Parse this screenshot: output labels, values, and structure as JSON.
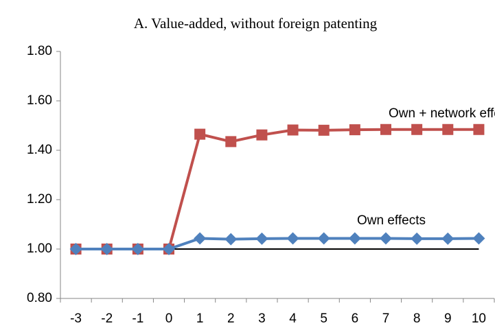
{
  "chart_data": {
    "type": "line",
    "title": "A. Value-added, without foreign patenting",
    "categories": [
      "-3",
      "-2",
      "-1",
      "0",
      "1",
      "2",
      "3",
      "4",
      "5",
      "6",
      "7",
      "8",
      "9",
      "10"
    ],
    "series": [
      {
        "name": "Own + network effects",
        "color": "#c0504d",
        "marker": "square",
        "values": [
          1.0,
          1.0,
          1.0,
          1.0,
          1.465,
          1.435,
          1.462,
          1.482,
          1.481,
          1.483,
          1.484,
          1.484,
          1.484,
          1.484
        ]
      },
      {
        "name": "Own effects",
        "color": "#4f81bd",
        "marker": "diamond",
        "values": [
          1.0,
          1.0,
          1.0,
          1.0,
          1.043,
          1.04,
          1.042,
          1.043,
          1.043,
          1.043,
          1.043,
          1.042,
          1.042,
          1.043
        ]
      }
    ],
    "reference_line": {
      "value": 1.0,
      "color": "#000000"
    },
    "ylim": [
      0.8,
      1.8
    ],
    "yticks": [
      {
        "value": 0.8,
        "label": "0.80"
      },
      {
        "value": 1.0,
        "label": "1.00"
      },
      {
        "value": 1.2,
        "label": "1.20"
      },
      {
        "value": 1.4,
        "label": "1.40"
      },
      {
        "value": 1.6,
        "label": "1.60"
      },
      {
        "value": 1.8,
        "label": "1.80"
      }
    ],
    "grid": false
  }
}
